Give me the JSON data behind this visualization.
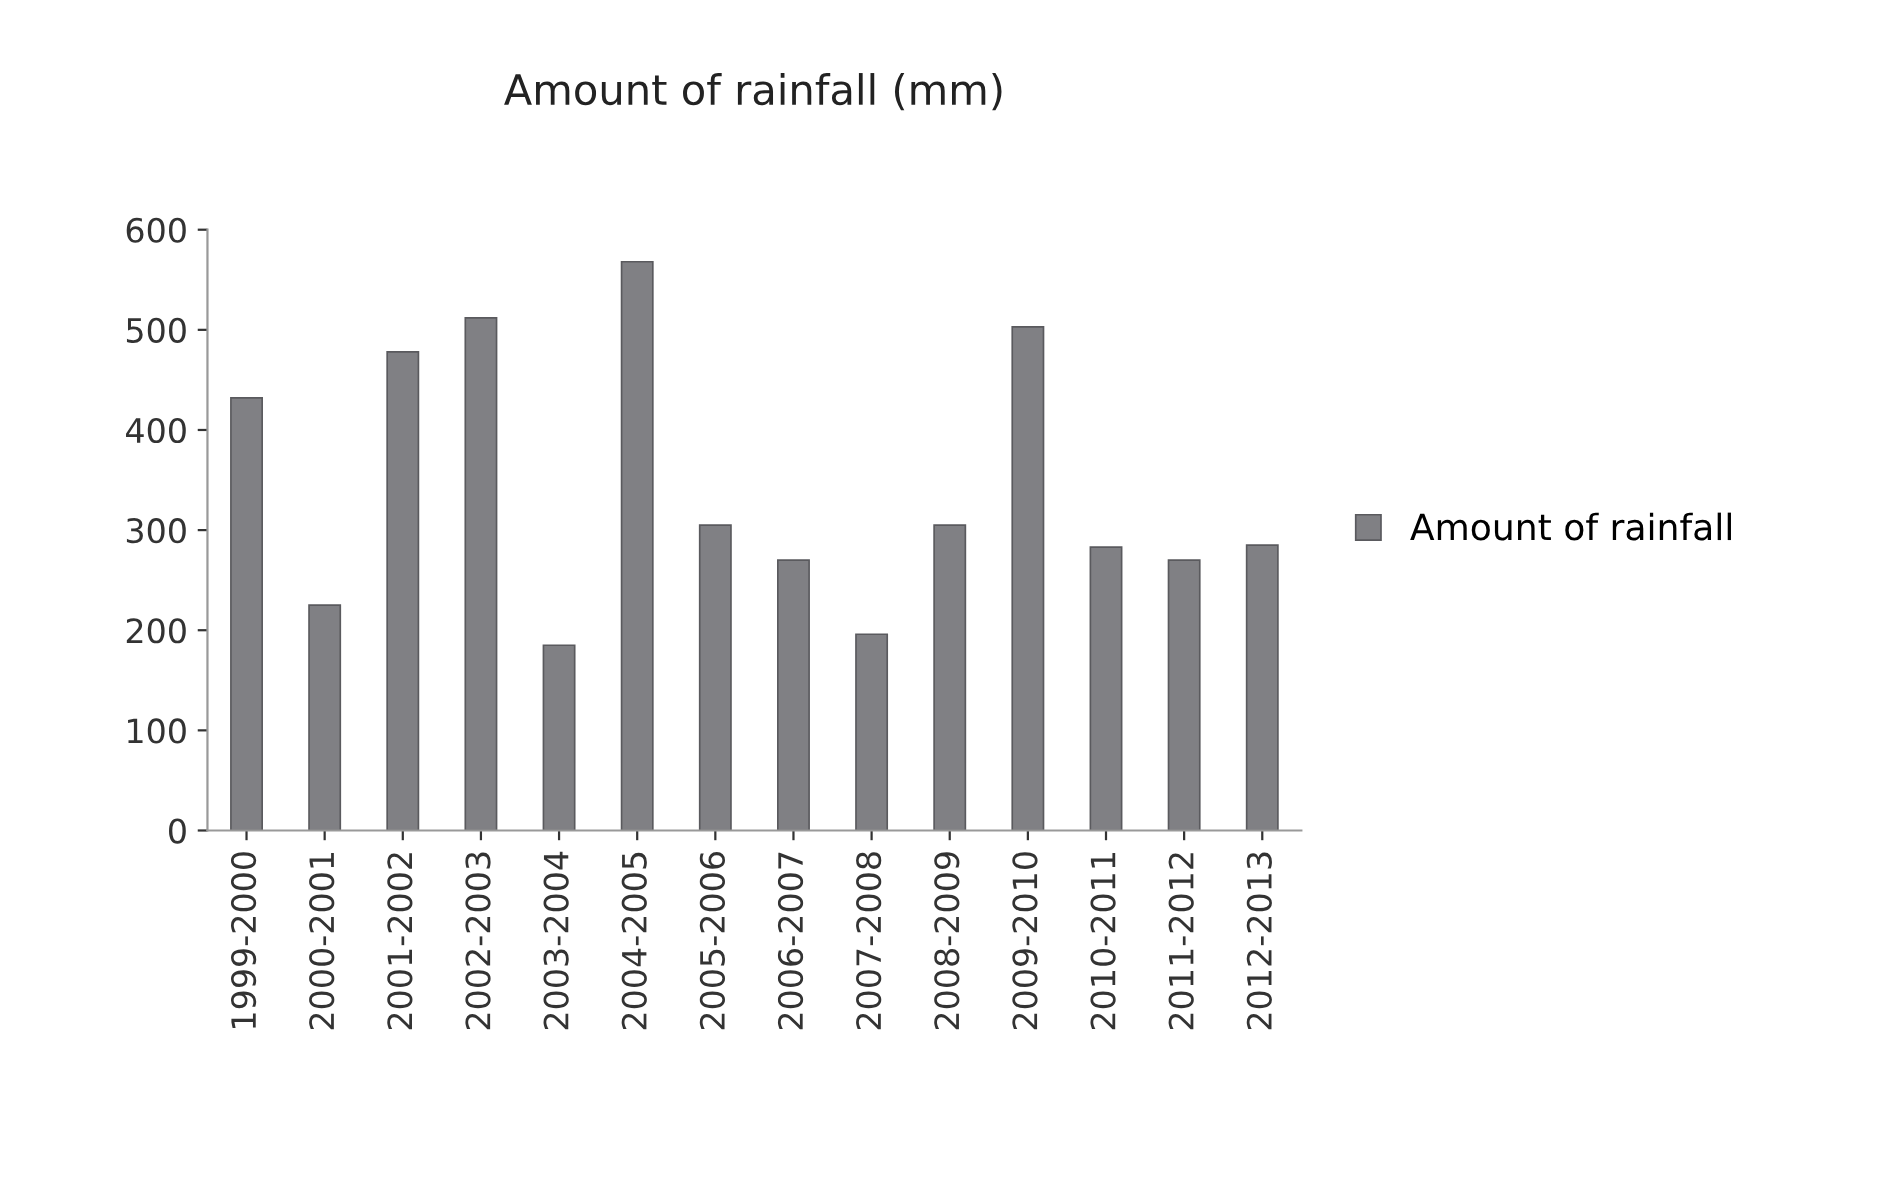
{
  "chart_data": {
    "type": "bar",
    "title": "Amount of rainfall (mm)",
    "categories": [
      "1999-2000",
      "2000-2001",
      "2001-2002",
      "2002-2003",
      "2003-2004",
      "2004-2005",
      "2005-2006",
      "2006-2007",
      "2007-2008",
      "2008-2009",
      "2009-2010",
      "2010-2011",
      "2011-2012",
      "2012-2013"
    ],
    "series": [
      {
        "name": "Amount of rainfall",
        "color": "#808084",
        "values": [
          432,
          225,
          478,
          512,
          185,
          568,
          305,
          270,
          196,
          305,
          503,
          283,
          270,
          285
        ]
      }
    ],
    "ylim": [
      0,
      600
    ],
    "yticks": [
      0,
      100,
      200,
      300,
      400,
      500,
      600
    ],
    "grid": false,
    "legend": "right"
  }
}
